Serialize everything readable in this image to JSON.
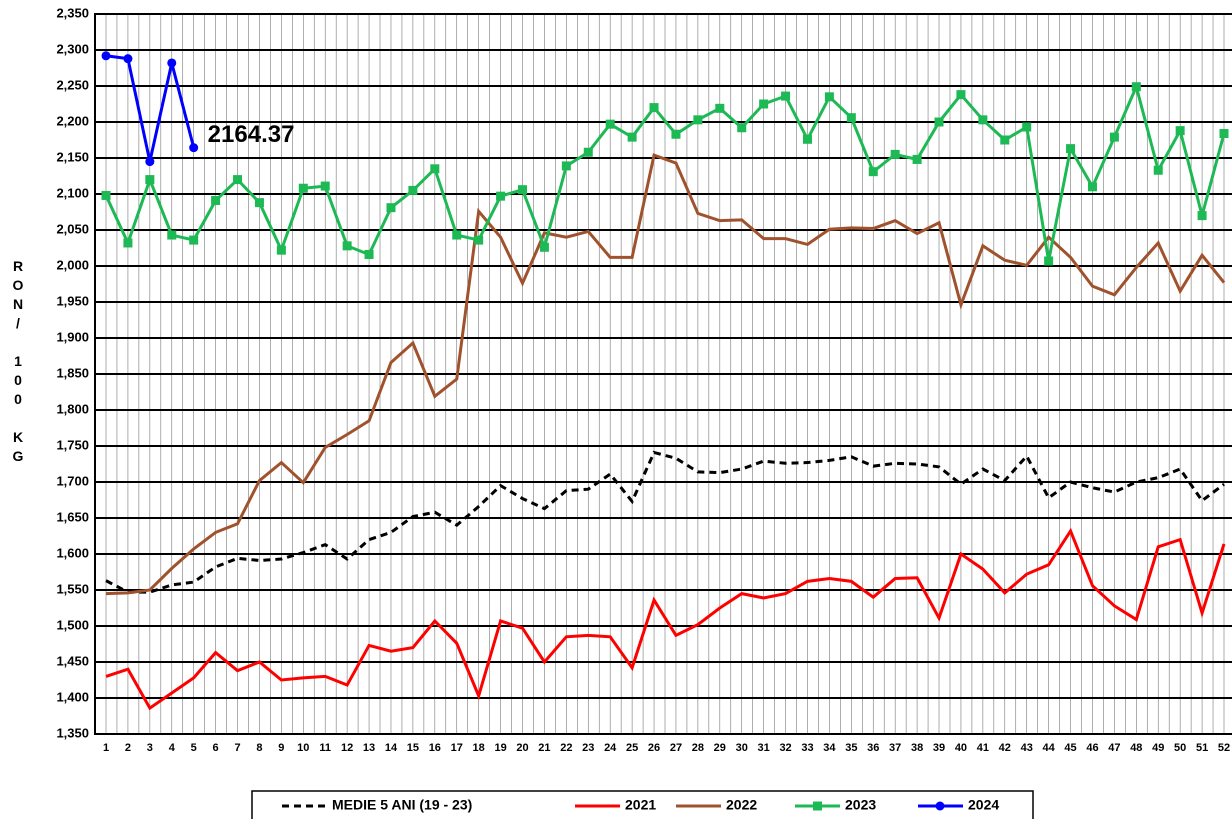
{
  "chart_data": {
    "type": "line",
    "y_label": "RON/ 100 KG",
    "categories": [
      "1",
      "2",
      "3",
      "4",
      "5",
      "6",
      "7",
      "8",
      "9",
      "10",
      "11",
      "12",
      "13",
      "14",
      "15",
      "16",
      "17",
      "18",
      "19",
      "20",
      "21",
      "22",
      "23",
      "24",
      "25",
      "26",
      "27",
      "28",
      "29",
      "30",
      "31",
      "32",
      "33",
      "34",
      "35",
      "36",
      "37",
      "38",
      "39",
      "40",
      "41",
      "42",
      "43",
      "44",
      "45",
      "46",
      "47",
      "48",
      "49",
      "50",
      "51",
      "52"
    ],
    "ylim": [
      1350,
      2350
    ],
    "yticks": [
      {
        "value": 1350,
        "label": "1,350"
      },
      {
        "value": 1400,
        "label": "1,400"
      },
      {
        "value": 1450,
        "label": "1,450"
      },
      {
        "value": 1500,
        "label": "1,500"
      },
      {
        "value": 1550,
        "label": "1,550"
      },
      {
        "value": 1600,
        "label": "1,600"
      },
      {
        "value": 1650,
        "label": "1,650"
      },
      {
        "value": 1700,
        "label": "1,700"
      },
      {
        "value": 1750,
        "label": "1,750"
      },
      {
        "value": 1800,
        "label": "1,800"
      },
      {
        "value": 1850,
        "label": "1,850"
      },
      {
        "value": 1900,
        "label": "1,900"
      },
      {
        "value": 1950,
        "label": "1,950"
      },
      {
        "value": 2000,
        "label": "2,000"
      },
      {
        "value": 2050,
        "label": "2,050"
      },
      {
        "value": 2100,
        "label": "2,100"
      },
      {
        "value": 2150,
        "label": "2,150"
      },
      {
        "value": 2200,
        "label": "2,200"
      },
      {
        "value": 2250,
        "label": "2,250"
      },
      {
        "value": 2300,
        "label": "2,300"
      },
      {
        "value": 2350,
        "label": "2,350"
      }
    ],
    "grid": true,
    "legend": "bottom",
    "series": [
      {
        "name": "MEDIE 5 ANI (19 - 23)",
        "color": "#000000",
        "dashed": true,
        "marker": "none",
        "values": [
          1563,
          1547,
          1547,
          1557,
          1561,
          1582,
          1594,
          1591,
          1593,
          1602,
          1613,
          1593,
          1620,
          1630,
          1652,
          1658,
          1640,
          1666,
          1695,
          1677,
          1663,
          1688,
          1690,
          1711,
          1673,
          1741,
          1733,
          1714,
          1713,
          1718,
          1729,
          1726,
          1727,
          1730,
          1735,
          1722,
          1726,
          1725,
          1721,
          1697,
          1718,
          1702,
          1736,
          1678,
          1700,
          1692,
          1686,
          1700,
          1706,
          1718,
          1674,
          1697
        ]
      },
      {
        "name": "2021",
        "color": "#ff0000",
        "marker": "none",
        "values": [
          1430,
          1440,
          1386,
          1407,
          1428,
          1463,
          1438,
          1450,
          1425,
          1428,
          1430,
          1418,
          1473,
          1465,
          1470,
          1507,
          1476,
          1403,
          1507,
          1497,
          1450,
          1485,
          1487,
          1485,
          1442,
          1536,
          1487,
          1502,
          1525,
          1545,
          1539,
          1545,
          1562,
          1566,
          1562,
          1540,
          1566,
          1567,
          1511,
          1600,
          1579,
          1546,
          1572,
          1585,
          1632,
          1556,
          1528,
          1509,
          1610,
          1620,
          1518,
          1614
        ]
      },
      {
        "name": "2022",
        "color": "#a0522d",
        "marker": "none",
        "values": [
          1545,
          1546,
          1550,
          1580,
          1607,
          1630,
          1642,
          1702,
          1727,
          1699,
          1748,
          1766,
          1785,
          1866,
          1893,
          1819,
          1843,
          2076,
          2040,
          1976,
          2046,
          2040,
          2048,
          2012,
          2012,
          2154,
          2143,
          2073,
          2063,
          2064,
          2038,
          2038,
          2030,
          2051,
          2053,
          2052,
          2063,
          2045,
          2060,
          1946,
          2028,
          2008,
          2001,
          2040,
          2012,
          1972,
          1960,
          1998,
          2032,
          1965,
          2015,
          1977
        ]
      },
      {
        "name": "2023",
        "color": "#1db954",
        "marker": "square",
        "values": [
          2098,
          2032,
          2120,
          2043,
          2036,
          2091,
          2120,
          2088,
          2022,
          2108,
          2111,
          2028,
          2016,
          2081,
          2105,
          2135,
          2043,
          2036,
          2097,
          2106,
          2026,
          2139,
          2158,
          2197,
          2179,
          2220,
          2183,
          2203,
          2219,
          2192,
          2225,
          2236,
          2176,
          2235,
          2206,
          2131,
          2155,
          2148,
          2200,
          2238,
          2203,
          2175,
          2193,
          2007,
          2163,
          2110,
          2179,
          2249,
          2133,
          2188,
          2070,
          2184
        ]
      },
      {
        "name": "2024",
        "color": "#0000ff",
        "marker": "circle",
        "show_last_label": true,
        "values": [
          2292,
          2288,
          2145,
          2282,
          2164.37,
          null,
          null,
          null,
          null,
          null,
          null,
          null,
          null,
          null,
          null,
          null,
          null,
          null,
          null,
          null,
          null,
          null,
          null,
          null,
          null,
          null,
          null,
          null,
          null,
          null,
          null,
          null,
          null,
          null,
          null,
          null,
          null,
          null,
          null,
          null,
          null,
          null,
          null,
          null,
          null,
          null,
          null,
          null,
          null,
          null,
          null,
          null
        ]
      }
    ]
  }
}
